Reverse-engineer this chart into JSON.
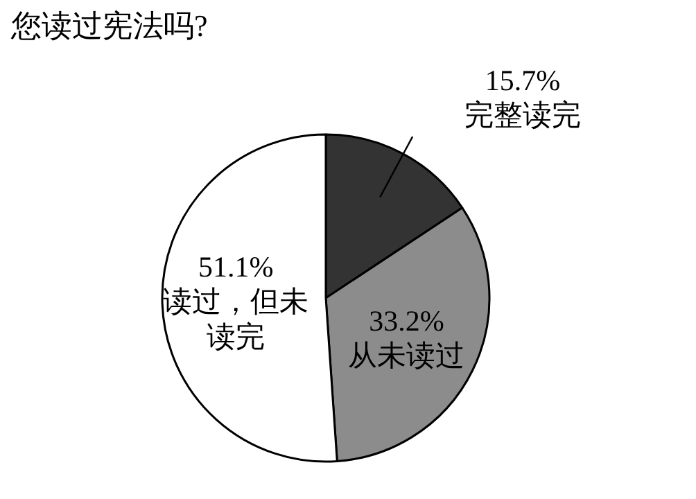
{
  "chart_data": {
    "type": "pie",
    "title": "您读过宪法吗?",
    "categories": [
      "完整读完",
      "从未读过",
      "读过，但未读完"
    ],
    "values": [
      15.7,
      33.2,
      51.1
    ],
    "value_labels": [
      "15.7%",
      "33.2%",
      "51.1%"
    ],
    "colors": [
      "#333333",
      "#8c8c8c",
      "#ffffff"
    ]
  }
}
